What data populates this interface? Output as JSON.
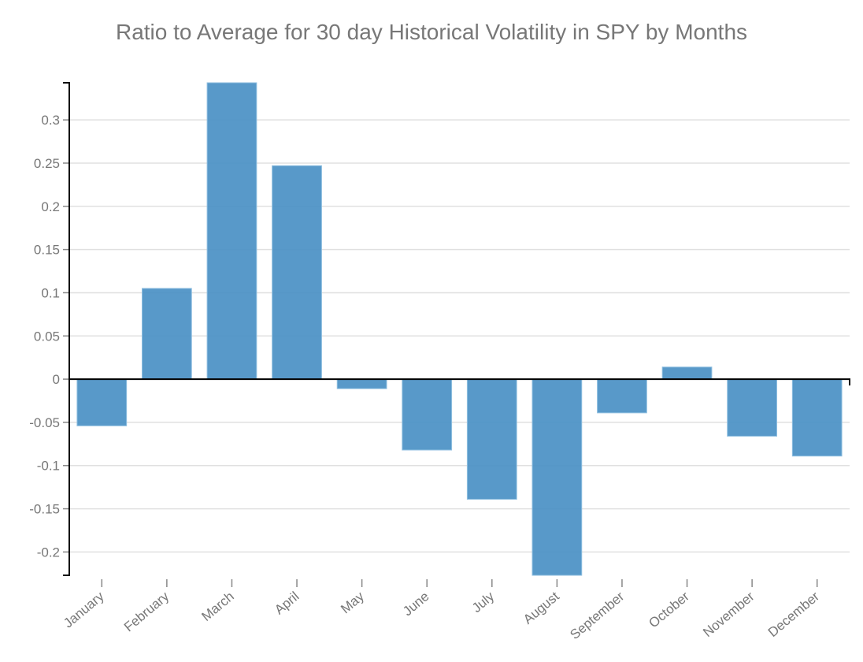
{
  "chart_data": {
    "type": "bar",
    "title": "Ratio to Average for 30 day Historical Volatility in SPY by Months",
    "xlabel": "",
    "ylabel": "",
    "categories": [
      "January",
      "February",
      "March",
      "April",
      "May",
      "June",
      "July",
      "August",
      "September",
      "October",
      "November",
      "December"
    ],
    "values": [
      -0.054,
      0.105,
      0.343,
      0.247,
      -0.011,
      -0.082,
      -0.139,
      -0.227,
      -0.039,
      0.014,
      -0.066,
      -0.089
    ],
    "ylim": [
      -0.227,
      0.343
    ],
    "yticks": [
      -0.2,
      -0.15,
      -0.1,
      -0.05,
      0,
      0.05,
      0.1,
      0.15,
      0.2,
      0.25,
      0.3
    ],
    "ytick_labels": [
      "-0.2",
      "-0.15",
      "-0.1",
      "-0.05",
      "0",
      "0.05",
      "0.1",
      "0.15",
      "0.2",
      "0.25",
      "0.3"
    ],
    "grid": true,
    "legend": "none",
    "bar_color": "#4a90c4"
  }
}
